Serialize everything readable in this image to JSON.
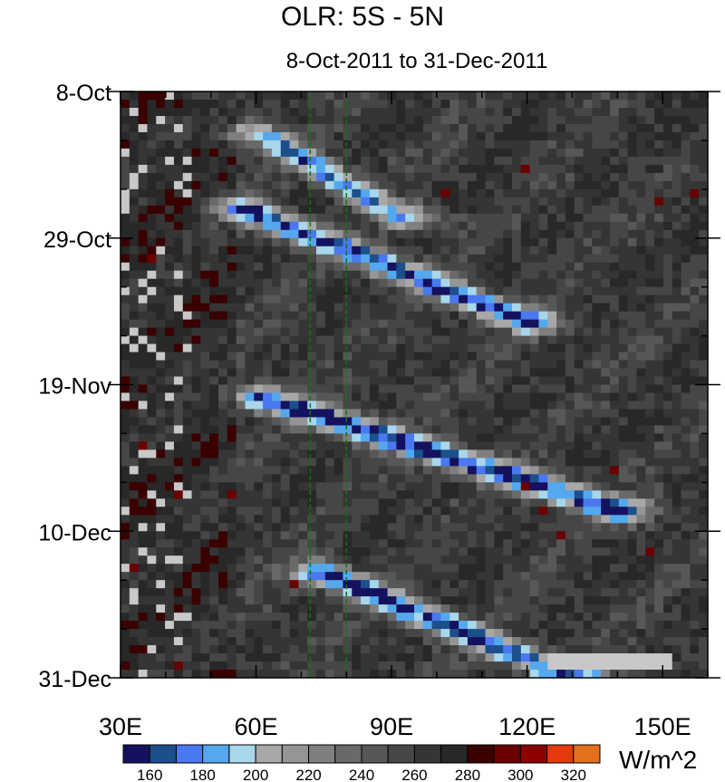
{
  "title": "OLR: 5S - 5N",
  "subtitle": "8-Oct-2011 to 31-Dec-2011",
  "chart_data": {
    "type": "heatmap",
    "title": "OLR: 5S - 5N",
    "subtitle": "8-Oct-2011 to 31-Dec-2011",
    "x_axis": {
      "range": [
        30,
        160
      ],
      "ticks": [
        30,
        60,
        90,
        120,
        150
      ],
      "tick_labels": [
        "30E",
        "60E",
        "90E",
        "120E",
        "150E"
      ],
      "minor_step": 10
    },
    "y_axis": {
      "range_days_from_top": [
        0,
        84
      ],
      "ticks": [
        0,
        21,
        42,
        63,
        84
      ],
      "tick_labels": [
        "8-Oct",
        "29-Oct",
        "19-Nov",
        "10-Dec",
        "31-Dec"
      ],
      "minor_step": 7,
      "direction": "time increases downward"
    },
    "colorbar": {
      "units": "W/m^2",
      "levels": [
        160,
        170,
        180,
        190,
        200,
        210,
        220,
        230,
        240,
        250,
        260,
        270,
        280,
        290,
        300,
        310,
        320
      ],
      "tick_labels": [
        "160",
        "180",
        "200",
        "220",
        "240",
        "260",
        "280",
        "300",
        "320"
      ],
      "colors": [
        "#14125e",
        "#1c4f8c",
        "#4a78f0",
        "#55a8ee",
        "#a8d6ea",
        "#a8a8a8",
        "#959595",
        "#7f7f7f",
        "#696969",
        "#575757",
        "#464646",
        "#353535",
        "#282828",
        "#3a0000",
        "#6b0000",
        "#8c0000",
        "#e43a0c",
        "#e2701c"
      ]
    },
    "reference_lines": [
      {
        "x": 72,
        "color": "#0a7a0a",
        "style": "dashed"
      },
      {
        "x": 80,
        "color": "#0a7a0a",
        "style": "dashed"
      }
    ],
    "low_olr_bands": [
      {
        "start": [
          61,
          6
        ],
        "end": [
          92,
          18
        ],
        "min_value": 175
      },
      {
        "start": [
          58,
          17
        ],
        "end": [
          120,
          33
        ],
        "min_value": 160
      },
      {
        "start": [
          62,
          44
        ],
        "end": [
          140,
          60
        ],
        "min_value": 155
      },
      {
        "start": [
          75,
          69
        ],
        "end": [
          130,
          84
        ],
        "min_value": 155
      }
    ],
    "missing_data": "light gray cells along the western edge (30E-45E) and near 125E-152E at the end of December"
  }
}
